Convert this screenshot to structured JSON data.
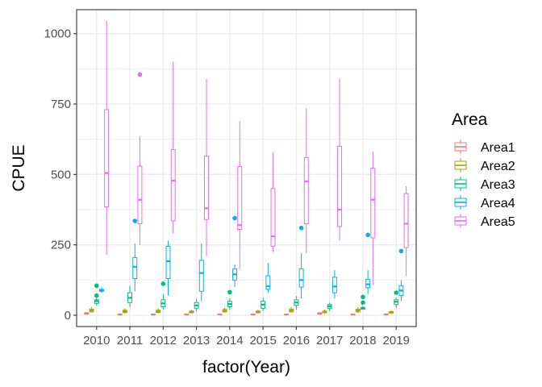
{
  "chart_data": {
    "type": "boxplot",
    "xlabel": "factor(Year)",
    "ylabel": "CPUE",
    "ylim": [
      -40,
      1085
    ],
    "yticks": [
      0,
      250,
      500,
      750,
      1000
    ],
    "categories": [
      "2010",
      "2011",
      "2012",
      "2013",
      "2014",
      "2015",
      "2016",
      "2017",
      "2018",
      "2019"
    ],
    "legend": {
      "title": "Area",
      "position": "right"
    },
    "grid": true,
    "series": [
      {
        "name": "Area1",
        "color": "#F8766D",
        "boxes": [
          {
            "min": 2,
            "q1": 4,
            "median": 6,
            "q3": 9,
            "max": 12,
            "outliers": []
          },
          {
            "min": 1,
            "q1": 2,
            "median": 3,
            "q3": 4,
            "max": 5,
            "outliers": []
          },
          {
            "min": 1,
            "q1": 2,
            "median": 3,
            "q3": 4,
            "max": 5,
            "outliers": []
          },
          {
            "min": 1,
            "q1": 2,
            "median": 3,
            "q3": 4,
            "max": 5,
            "outliers": []
          },
          {
            "min": 1,
            "q1": 2,
            "median": 3,
            "q3": 4,
            "max": 6,
            "outliers": []
          },
          {
            "min": 1,
            "q1": 2,
            "median": 3,
            "q3": 4,
            "max": 5,
            "outliers": []
          },
          {
            "min": 1,
            "q1": 2,
            "median": 3,
            "q3": 4,
            "max": 5,
            "outliers": []
          },
          {
            "min": 2,
            "q1": 4,
            "median": 6,
            "q3": 9,
            "max": 12,
            "outliers": []
          },
          {
            "min": 1,
            "q1": 2,
            "median": 3,
            "q3": 4,
            "max": 5,
            "outliers": []
          },
          {
            "min": 1,
            "q1": 2,
            "median": 3,
            "q3": 4,
            "max": 5,
            "outliers": []
          }
        ]
      },
      {
        "name": "Area2",
        "color": "#A3A500",
        "boxes": [
          {
            "min": 8,
            "q1": 12,
            "median": 17,
            "q3": 22,
            "max": 30,
            "outliers": []
          },
          {
            "min": 6,
            "q1": 10,
            "median": 14,
            "q3": 18,
            "max": 25,
            "outliers": []
          },
          {
            "min": 6,
            "q1": 10,
            "median": 14,
            "q3": 18,
            "max": 25,
            "outliers": []
          },
          {
            "min": 6,
            "q1": 9,
            "median": 12,
            "q3": 15,
            "max": 20,
            "outliers": []
          },
          {
            "min": 8,
            "q1": 12,
            "median": 16,
            "q3": 21,
            "max": 28,
            "outliers": []
          },
          {
            "min": 6,
            "q1": 9,
            "median": 12,
            "q3": 15,
            "max": 20,
            "outliers": []
          },
          {
            "min": 8,
            "q1": 12,
            "median": 17,
            "q3": 22,
            "max": 30,
            "outliers": []
          },
          {
            "min": 6,
            "q1": 9,
            "median": 12,
            "q3": 15,
            "max": 20,
            "outliers": []
          },
          {
            "min": 8,
            "q1": 12,
            "median": 17,
            "q3": 22,
            "max": 30,
            "outliers": []
          },
          {
            "min": 5,
            "q1": 8,
            "median": 10,
            "q3": 13,
            "max": 18,
            "outliers": []
          }
        ]
      },
      {
        "name": "Area3",
        "color": "#00BF7D",
        "boxes": [
          {
            "min": 35,
            "q1": 42,
            "median": 50,
            "q3": 55,
            "max": 62,
            "outliers": [
              70,
              105
            ]
          },
          {
            "min": 30,
            "q1": 45,
            "median": 62,
            "q3": 80,
            "max": 105,
            "outliers": []
          },
          {
            "min": 20,
            "q1": 30,
            "median": 42,
            "q3": 55,
            "max": 75,
            "outliers": [
              112
            ]
          },
          {
            "min": 15,
            "q1": 25,
            "median": 35,
            "q3": 45,
            "max": 58,
            "outliers": []
          },
          {
            "min": 20,
            "q1": 30,
            "median": 40,
            "q3": 50,
            "max": 60,
            "outliers": [
              82
            ]
          },
          {
            "min": 15,
            "q1": 25,
            "median": 38,
            "q3": 50,
            "max": 62,
            "outliers": []
          },
          {
            "min": 20,
            "q1": 35,
            "median": 45,
            "q3": 55,
            "max": 68,
            "outliers": []
          },
          {
            "min": 15,
            "q1": 24,
            "median": 32,
            "q3": 38,
            "max": 45,
            "outliers": []
          },
          {
            "min": 20,
            "q1": 22,
            "median": 25,
            "q3": 28,
            "max": 32,
            "outliers": [
              45,
              65
            ]
          },
          {
            "min": 25,
            "q1": 38,
            "median": 48,
            "q3": 55,
            "max": 62,
            "outliers": [
              80
            ]
          }
        ]
      },
      {
        "name": "Area4",
        "color": "#00B0F6",
        "boxes": [
          {
            "min": 80,
            "q1": 85,
            "median": 88,
            "q3": 92,
            "max": 100,
            "outliers": []
          },
          {
            "min": 85,
            "q1": 130,
            "median": 172,
            "q3": 205,
            "max": 255,
            "outliers": [
              335
            ]
          },
          {
            "min": 70,
            "q1": 130,
            "median": 192,
            "q3": 245,
            "max": 265,
            "outliers": []
          },
          {
            "min": 50,
            "q1": 85,
            "median": 150,
            "q3": 195,
            "max": 255,
            "outliers": []
          },
          {
            "min": 100,
            "q1": 125,
            "median": 145,
            "q3": 165,
            "max": 180,
            "outliers": [
              345
            ]
          },
          {
            "min": 80,
            "q1": 92,
            "median": 103,
            "q3": 140,
            "max": 185,
            "outliers": []
          },
          {
            "min": 60,
            "q1": 100,
            "median": 125,
            "q3": 165,
            "max": 220,
            "outliers": [
              310
            ]
          },
          {
            "min": 60,
            "q1": 80,
            "median": 102,
            "q3": 135,
            "max": 160,
            "outliers": []
          },
          {
            "min": 75,
            "q1": 98,
            "median": 110,
            "q3": 128,
            "max": 160,
            "outliers": [
              285
            ]
          },
          {
            "min": 50,
            "q1": 70,
            "median": 88,
            "q3": 105,
            "max": 125,
            "outliers": [
              228
            ]
          }
        ]
      },
      {
        "name": "Area5",
        "color": "#E76BF3",
        "boxes": [
          {
            "min": 215,
            "q1": 385,
            "median": 505,
            "q3": 730,
            "max": 1045,
            "outliers": []
          },
          {
            "min": 250,
            "q1": 325,
            "median": 410,
            "q3": 530,
            "max": 635,
            "outliers": [
              855
            ]
          },
          {
            "min": 290,
            "q1": 335,
            "median": 478,
            "q3": 588,
            "max": 900,
            "outliers": []
          },
          {
            "min": 210,
            "q1": 340,
            "median": 380,
            "q3": 565,
            "max": 840,
            "outliers": []
          },
          {
            "min": 165,
            "q1": 305,
            "median": 320,
            "q3": 528,
            "max": 690,
            "outliers": []
          },
          {
            "min": 225,
            "q1": 245,
            "median": 280,
            "q3": 450,
            "max": 578,
            "outliers": []
          },
          {
            "min": 220,
            "q1": 325,
            "median": 475,
            "q3": 560,
            "max": 735,
            "outliers": []
          },
          {
            "min": 265,
            "q1": 315,
            "median": 375,
            "q3": 600,
            "max": 840,
            "outliers": []
          },
          {
            "min": 108,
            "q1": 275,
            "median": 410,
            "q3": 522,
            "max": 580,
            "outliers": []
          },
          {
            "min": 140,
            "q1": 240,
            "median": 325,
            "q3": 432,
            "max": 458,
            "outliers": []
          }
        ]
      }
    ]
  }
}
